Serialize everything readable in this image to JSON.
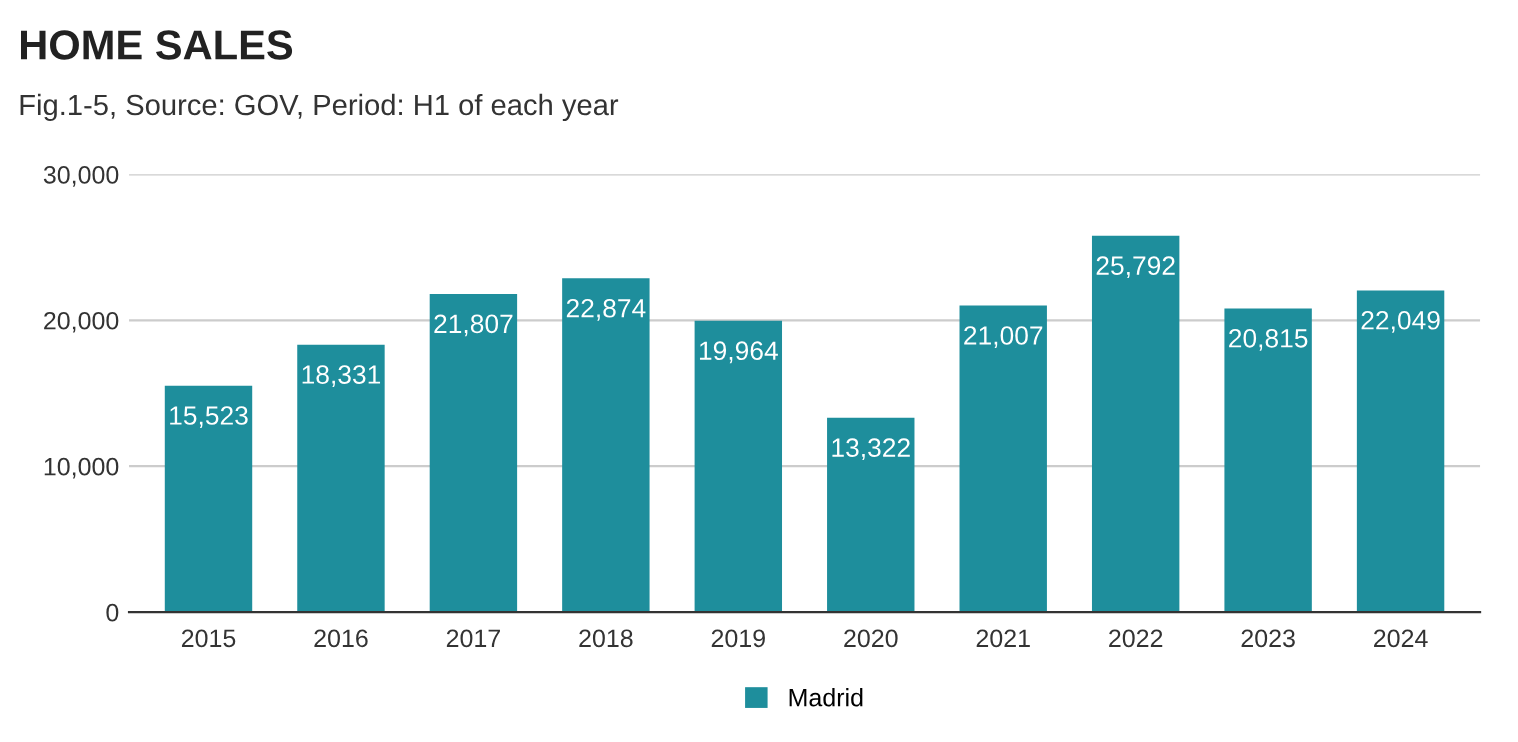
{
  "chart_data": {
    "type": "bar",
    "title": "HOME SALES",
    "subtitle": "Fig.1-5, Source: GOV, Period: H1 of each year",
    "categories": [
      "2015",
      "2016",
      "2017",
      "2018",
      "2019",
      "2020",
      "2021",
      "2022",
      "2023",
      "2024"
    ],
    "series": [
      {
        "name": "Madrid",
        "color": "#1e8e9c",
        "values": [
          15523,
          18331,
          21807,
          22874,
          19964,
          13322,
          21007,
          25792,
          20815,
          22049
        ],
        "value_labels": [
          "15,523",
          "18,331",
          "21,807",
          "22,874",
          "19,964",
          "13,322",
          "21,007",
          "25,792",
          "20,815",
          "22,049"
        ]
      }
    ],
    "ylim": [
      0,
      30000
    ],
    "yticks": [
      {
        "value": 0,
        "label": "0"
      },
      {
        "value": 10000,
        "label": "10,000"
      },
      {
        "value": 20000,
        "label": "20,000"
      },
      {
        "value": 30000,
        "label": "30,000"
      }
    ],
    "grid": "y",
    "legend": "bottom"
  }
}
